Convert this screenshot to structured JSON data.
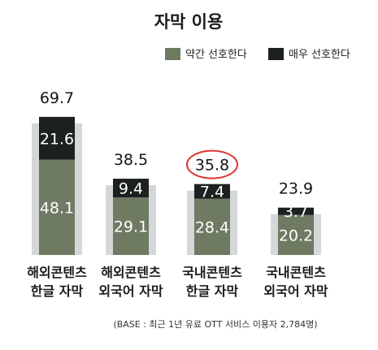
{
  "chart_data": {
    "type": "bar",
    "stacked": true,
    "title": "자막 이용",
    "categories": [
      [
        "해외콘텐츠",
        "한글 자막"
      ],
      [
        "해외콘텐츠",
        "외국어 자막"
      ],
      [
        "국내콘텐츠",
        "한글 자막"
      ],
      [
        "국내콘텐츠",
        "외국어 자막"
      ]
    ],
    "series": [
      {
        "name": "약간 선호한다",
        "values": [
          48.1,
          29.1,
          28.4,
          20.2
        ]
      },
      {
        "name": "매우 선호한다",
        "values": [
          21.6,
          9.4,
          7.4,
          3.7
        ]
      }
    ],
    "totals": [
      69.7,
      38.5,
      35.8,
      23.9
    ],
    "highlighted_total_index": 2,
    "legend_position": "top-right",
    "ylim": [
      0,
      80
    ],
    "grid": false,
    "colors": {
      "somewhat": "#6f7a63",
      "very": "#1c2120",
      "backdrop": "#d5d7d8",
      "highlight_circle": "#e0342f"
    },
    "footnote": "(BASE : 최근 1년 유료 OTT 서비스 이용자 2,784명)"
  }
}
